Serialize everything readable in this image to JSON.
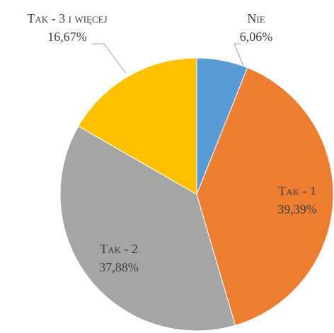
{
  "chart_data": {
    "type": "pie",
    "categories": [
      "Nie",
      "Tak - 1",
      "Tak - 2",
      "Tak - 3 i więcej"
    ],
    "values": [
      6.06,
      39.39,
      37.88,
      16.67
    ],
    "value_labels": [
      "6,06%",
      "39,39%",
      "37,88%",
      "16,67%"
    ],
    "colors": [
      "#5b9bd5",
      "#ed7d31",
      "#a5a5a5",
      "#ffc000"
    ]
  }
}
